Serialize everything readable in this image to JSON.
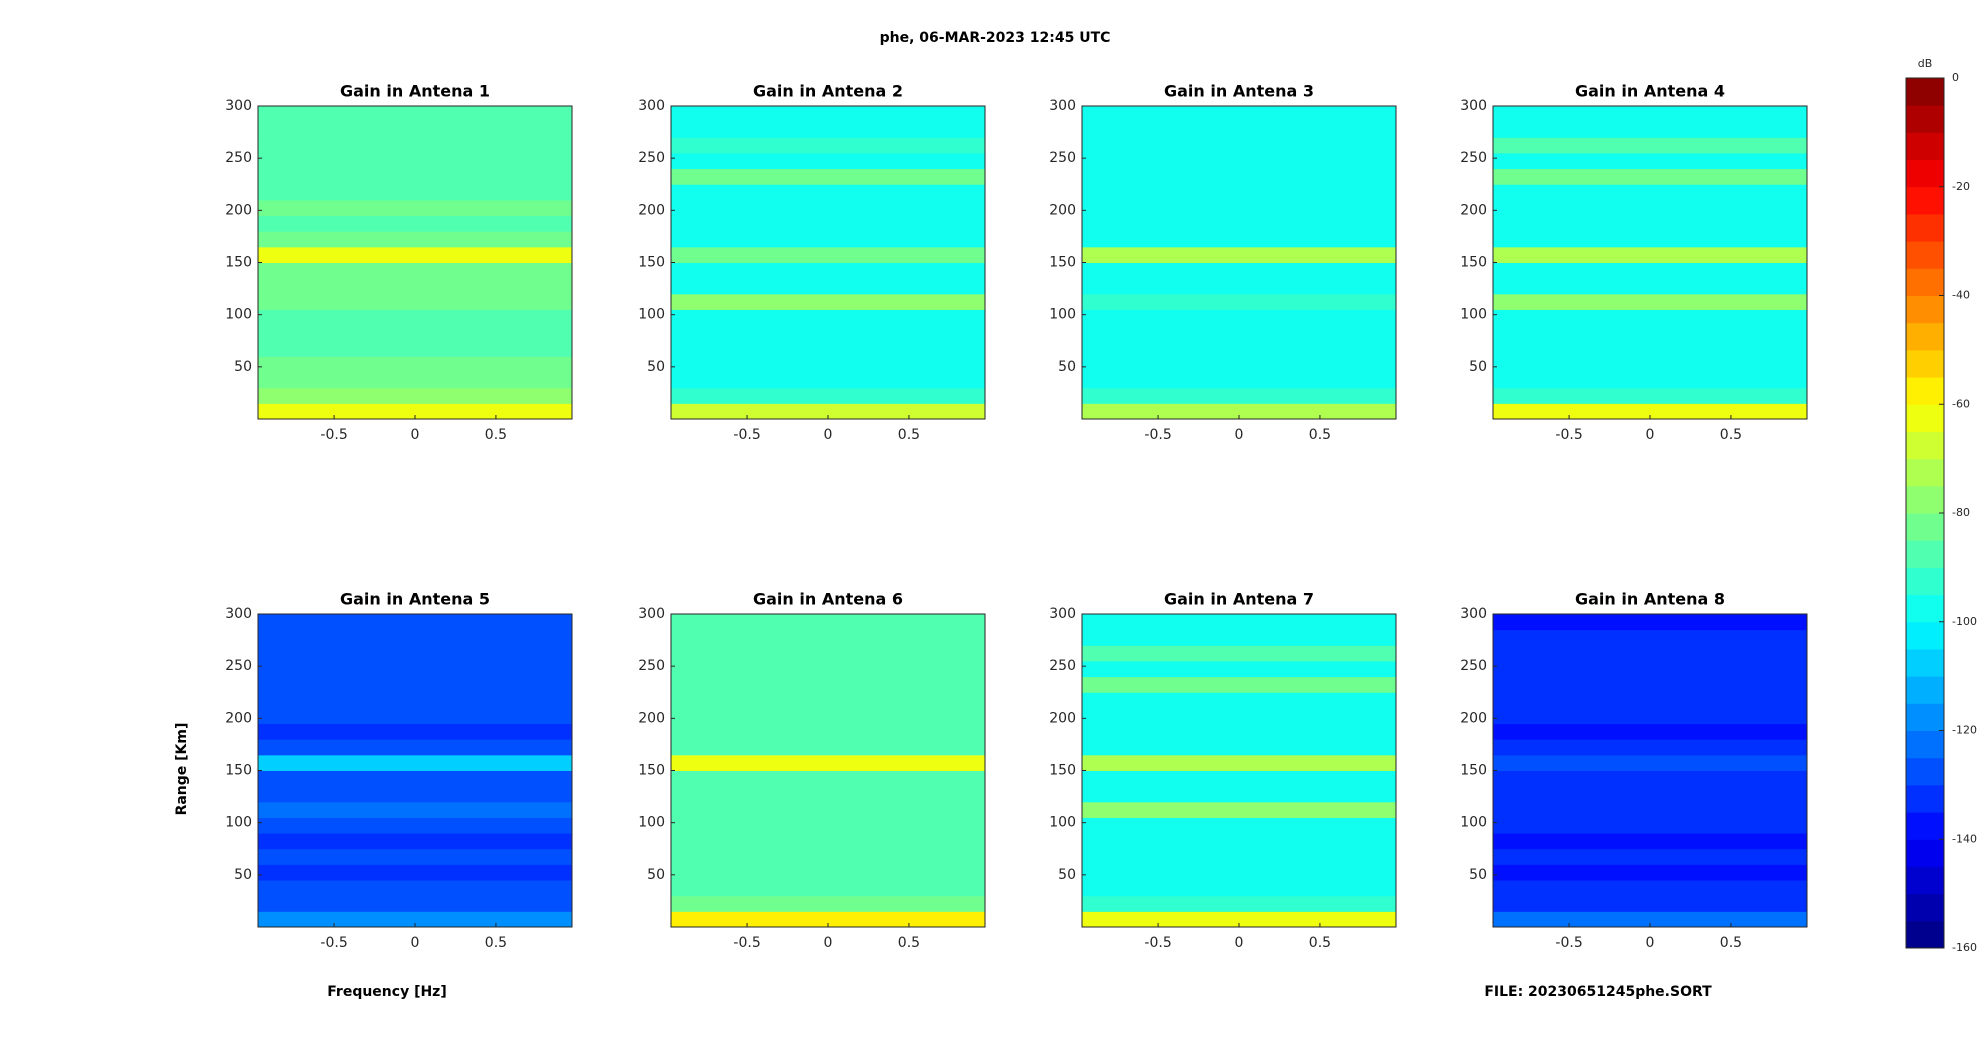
{
  "title": "phe, 06-MAR-2023 12:45 UTC",
  "xlabel": "Frequency [Hz]",
  "ylabel": "Range [Km]",
  "file": "FILE: 20230651245phe.SORT",
  "colorbar": {
    "label": "dB",
    "colormap": "jet",
    "lim": [
      -160,
      0
    ],
    "steps": 32,
    "ticks": [
      0,
      -20,
      -40,
      -60,
      -80,
      -100,
      -120,
      -140,
      -160
    ]
  },
  "chart_data": [
    {
      "type": "heatmap",
      "title": "Gain in Antena 1",
      "xlim": [
        -0.97,
        0.97
      ],
      "ylim": [
        0,
        300
      ],
      "xticks": [
        -0.5,
        0,
        0.5
      ],
      "yticks": [
        50,
        100,
        150,
        200,
        250,
        300
      ],
      "ybins": [
        0,
        15,
        30,
        45,
        60,
        75,
        90,
        105,
        120,
        135,
        150,
        165,
        180,
        195,
        210,
        225,
        240,
        255,
        270,
        285,
        300
      ],
      "values": [
        -62,
        -78,
        -82,
        -85,
        -86,
        -86,
        -86,
        -85,
        -84,
        -84,
        -63,
        -85,
        -86,
        -85,
        -86,
        -86,
        -86,
        -86,
        -86,
        -87
      ]
    },
    {
      "type": "heatmap",
      "title": "Gain in Antena 2",
      "xlim": [
        -0.97,
        0.97
      ],
      "ylim": [
        0,
        300
      ],
      "xticks": [
        -0.5,
        0,
        0.5
      ],
      "yticks": [
        50,
        100,
        150,
        200,
        250,
        300
      ],
      "ybins": [
        0,
        15,
        30,
        45,
        60,
        75,
        90,
        105,
        120,
        135,
        150,
        165,
        180,
        195,
        210,
        225,
        240,
        255,
        270,
        285,
        300
      ],
      "values": [
        -66,
        -92,
        -98,
        -100,
        -100,
        -100,
        -100,
        -79,
        -98,
        -100,
        -82,
        -100,
        -100,
        -100,
        -100,
        -81,
        -100,
        -93,
        -100,
        -100
      ]
    },
    {
      "type": "heatmap",
      "title": "Gain in Antena 3",
      "xlim": [
        -0.97,
        0.97
      ],
      "ylim": [
        0,
        300
      ],
      "xticks": [
        -0.5,
        0,
        0.5
      ],
      "yticks": [
        50,
        100,
        150,
        200,
        250,
        300
      ],
      "ybins": [
        0,
        15,
        30,
        45,
        60,
        75,
        90,
        105,
        120,
        135,
        150,
        165,
        180,
        195,
        210,
        225,
        240,
        255,
        270,
        285,
        300
      ],
      "values": [
        -72,
        -94,
        -97,
        -98,
        -98,
        -98,
        -98,
        -92,
        -98,
        -98,
        -72,
        -98,
        -98,
        -98,
        -98,
        -96,
        -98,
        -98,
        -98,
        -98
      ]
    },
    {
      "type": "heatmap",
      "title": "Gain in Antena 4",
      "xlim": [
        -0.97,
        0.97
      ],
      "ylim": [
        0,
        300
      ],
      "xticks": [
        -0.5,
        0,
        0.5
      ],
      "yticks": [
        50,
        100,
        150,
        200,
        250,
        300
      ],
      "ybins": [
        0,
        15,
        30,
        45,
        60,
        75,
        90,
        105,
        120,
        135,
        150,
        165,
        180,
        195,
        210,
        225,
        240,
        255,
        270,
        285,
        300
      ],
      "values": [
        -65,
        -92,
        -97,
        -99,
        -99,
        -99,
        -99,
        -76,
        -97,
        -99,
        -75,
        -99,
        -99,
        -99,
        -99,
        -84,
        -99,
        -90,
        -99,
        -99
      ]
    },
    {
      "type": "heatmap",
      "title": "Gain in Antena 5",
      "xlim": [
        -0.97,
        0.97
      ],
      "ylim": [
        0,
        300
      ],
      "xticks": [
        -0.5,
        0,
        0.5
      ],
      "yticks": [
        50,
        100,
        150,
        200,
        250,
        300
      ],
      "ybins": [
        0,
        15,
        30,
        45,
        60,
        75,
        90,
        105,
        120,
        135,
        150,
        165,
        180,
        195,
        210,
        225,
        240,
        255,
        270,
        285,
        300
      ],
      "values": [
        -120,
        -128,
        -130,
        -132,
        -130,
        -132,
        -130,
        -124,
        -130,
        -130,
        -110,
        -130,
        -132,
        -130,
        -128,
        -128,
        -130,
        -126,
        -128,
        -130
      ]
    },
    {
      "type": "heatmap",
      "title": "Gain in Antena 6",
      "xlim": [
        -0.97,
        0.97
      ],
      "ylim": [
        0,
        300
      ],
      "xticks": [
        -0.5,
        0,
        0.5
      ],
      "yticks": [
        50,
        100,
        150,
        200,
        250,
        300
      ],
      "ybins": [
        0,
        15,
        30,
        45,
        60,
        75,
        90,
        105,
        120,
        135,
        150,
        165,
        180,
        195,
        210,
        225,
        240,
        255,
        270,
        285,
        300
      ],
      "values": [
        -60,
        -82,
        -86,
        -88,
        -90,
        -90,
        -90,
        -90,
        -90,
        -90,
        -62,
        -90,
        -90,
        -90,
        -90,
        -90,
        -90,
        -90,
        -90,
        -90
      ]
    },
    {
      "type": "heatmap",
      "title": "Gain in Antena 7",
      "xlim": [
        -0.97,
        0.97
      ],
      "ylim": [
        0,
        300
      ],
      "xticks": [
        -0.5,
        0,
        0.5
      ],
      "yticks": [
        50,
        100,
        150,
        200,
        250,
        300
      ],
      "ybins": [
        0,
        15,
        30,
        45,
        60,
        75,
        90,
        105,
        120,
        135,
        150,
        165,
        180,
        195,
        210,
        225,
        240,
        255,
        270,
        285,
        300
      ],
      "values": [
        -65,
        -94,
        -98,
        -98,
        -98,
        -98,
        -98,
        -78,
        -98,
        -98,
        -75,
        -98,
        -98,
        -98,
        -98,
        -82,
        -98,
        -90,
        -98,
        -98
      ]
    },
    {
      "type": "heatmap",
      "title": "Gain in Antena 8",
      "xlim": [
        -0.97,
        0.97
      ],
      "ylim": [
        0,
        300
      ],
      "xticks": [
        -0.5,
        0,
        0.5
      ],
      "yticks": [
        50,
        100,
        150,
        200,
        250,
        300
      ],
      "ybins": [
        0,
        15,
        30,
        45,
        60,
        75,
        90,
        105,
        120,
        135,
        150,
        165,
        180,
        195,
        210,
        225,
        240,
        255,
        270,
        285,
        300
      ],
      "values": [
        -125,
        -133,
        -135,
        -136,
        -135,
        -136,
        -135,
        -134,
        -135,
        -135,
        -130,
        -135,
        -136,
        -135,
        -134,
        -135,
        -135,
        -135,
        -135,
        -136
      ]
    }
  ]
}
